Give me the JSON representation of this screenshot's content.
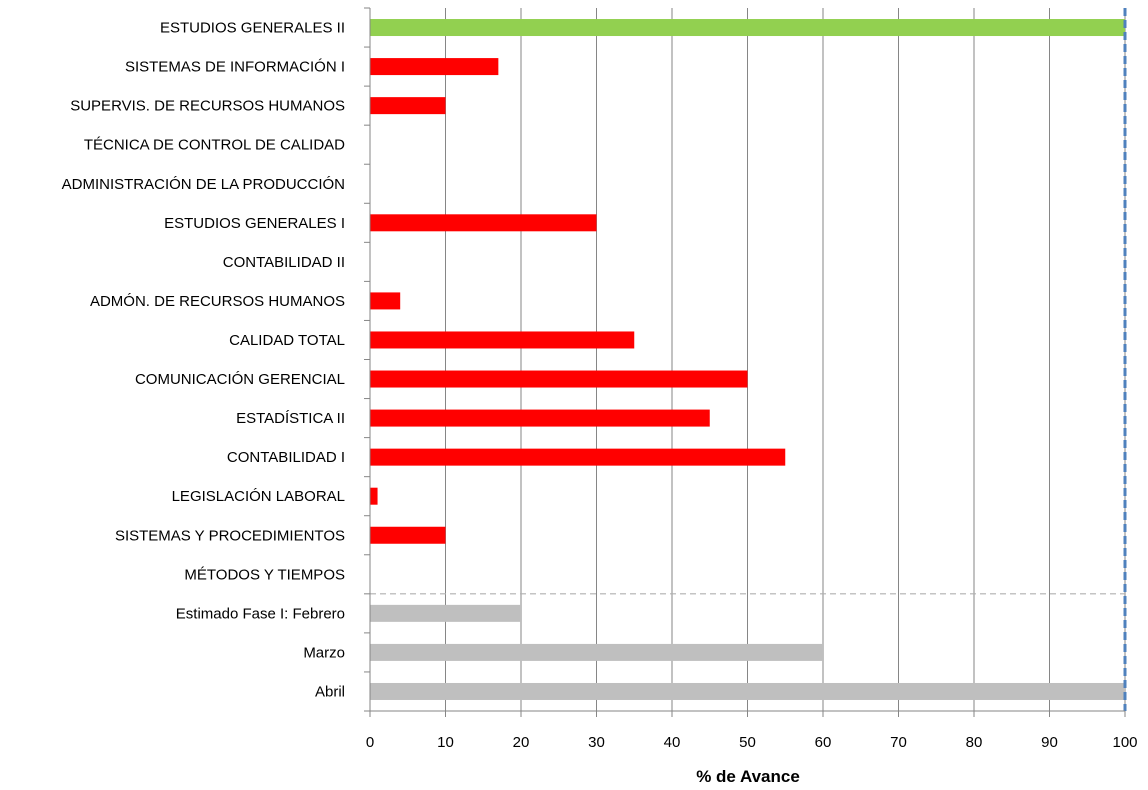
{
  "chart_data": {
    "type": "bar",
    "orientation": "horizontal",
    "title": "",
    "xlabel": "% de Avance",
    "ylabel": "",
    "xlim": [
      0,
      100
    ],
    "xticks": [
      0,
      10,
      20,
      30,
      40,
      50,
      60,
      70,
      80,
      90,
      100
    ],
    "grid": "vertical",
    "legend": "none",
    "categories": [
      "ESTUDIOS GENERALES II",
      "SISTEMAS DE INFORMACIÓN I",
      "SUPERVIS. DE  RECURSOS HUMANOS",
      "TÉCNICA DE CONTROL DE CALIDAD",
      "ADMINISTRACIÓN DE LA PRODUCCIÓN",
      "ESTUDIOS GENERALES I",
      "CONTABILIDAD II",
      "ADMÓN. DE RECURSOS HUMANOS",
      "CALIDAD TOTAL",
      "COMUNICACIÓN GERENCIAL",
      "ESTADÍSTICA II",
      "CONTABILIDAD I",
      "LEGISLACIÓN LABORAL",
      "SISTEMAS Y PROCEDIMIENTOS",
      "MÉTODOS Y TIEMPOS",
      "Estimado Fase I:  Febrero",
      "Marzo",
      "Abril"
    ],
    "values": [
      100,
      17,
      10,
      0,
      0,
      30,
      0,
      4,
      35,
      50,
      45,
      55,
      1,
      10,
      0,
      20,
      60,
      100
    ],
    "bar_colors": [
      "#92d050",
      "#ff0000",
      "#ff0000",
      "#ff0000",
      "#ff0000",
      "#ff0000",
      "#ff0000",
      "#ff0000",
      "#ff0000",
      "#ff0000",
      "#ff0000",
      "#ff0000",
      "#ff0000",
      "#ff0000",
      "#ff0000",
      "#bfbfbf",
      "#bfbfbf",
      "#bfbfbf"
    ],
    "separator_after_index": 14,
    "reference_line_x": 100,
    "reference_line_color": "#4f81bd",
    "grid_color": "#868686",
    "axis_color": "#868686"
  }
}
